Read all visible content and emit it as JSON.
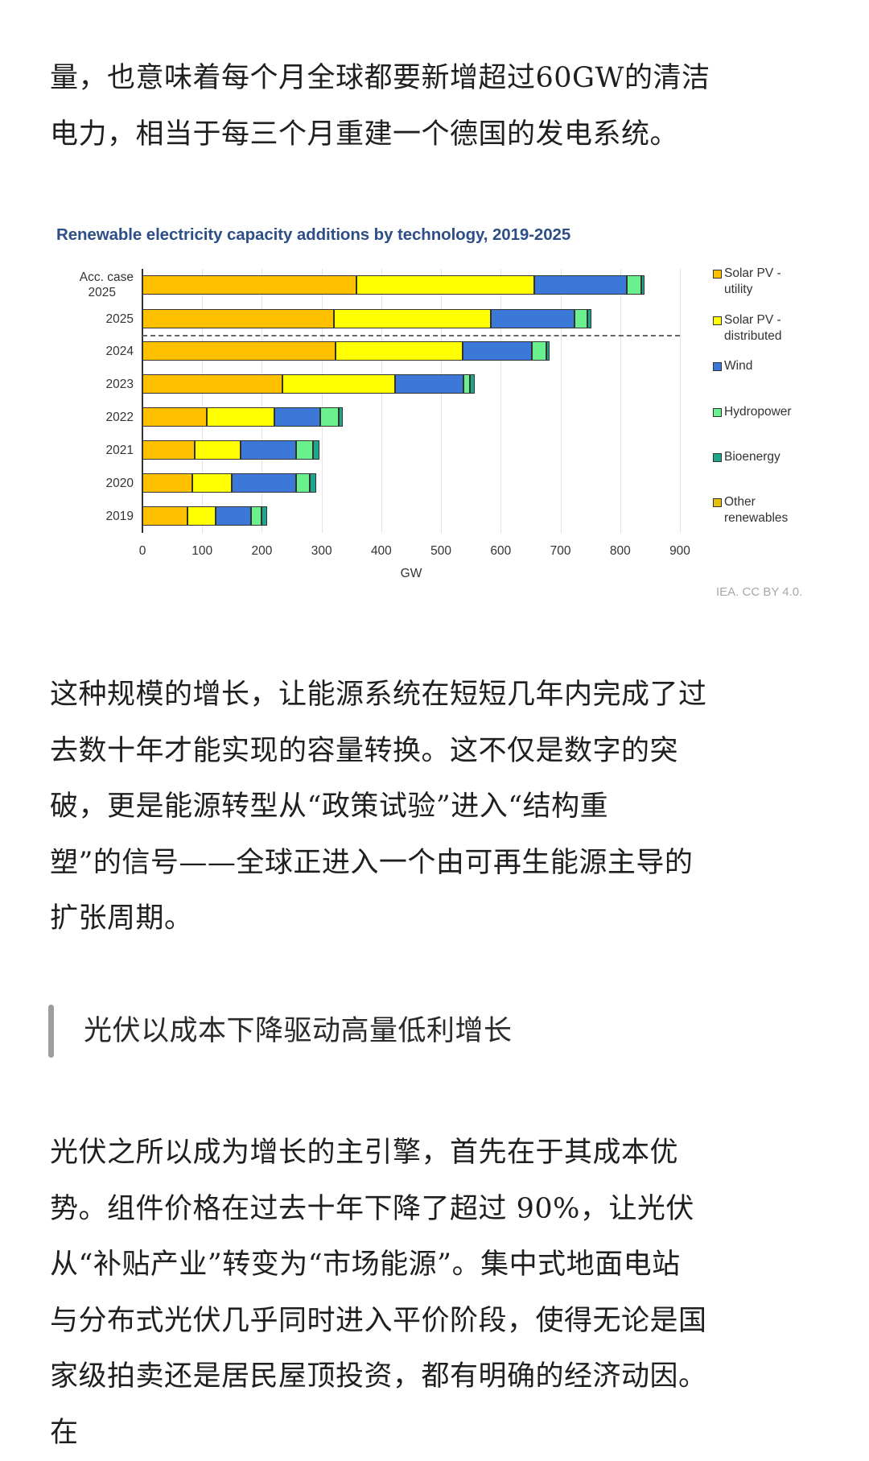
{
  "article": {
    "paragraph1": {
      "lines": [
        "量，也意味着每个月全球都要新增超过60GW的清洁",
        "电力，相当于每三个月重建一个德国的发电系统。"
      ]
    },
    "paragraph2": {
      "lines": [
        "这种规模的增长，让能源系统在短短几年内完成了过",
        "去数十年才能实现的容量转换。这不仅是数字的突",
        "破，更是能源转型从“政策试验”进入“结构重",
        "塑”的信号——全球正进入一个由可再生能源主导的",
        "扩张周期。"
      ]
    },
    "section_heading": "光伏以成本下降驱动高量低利增长",
    "paragraph3": {
      "lines": [
        "光伏之所以成为增长的主引擎，首先在于其成本优",
        "势。组件价格在过去十年下降了超过 90%，让光伏",
        "从“补贴产业”转变为“市场能源”。集中式地面电站",
        "与分布式光伏几乎同时进入平价阶段，使得无论是国",
        "家级拍卖还是居民屋顶投资，都有明确的经济动因。",
        "在"
      ]
    }
  },
  "chart_data": {
    "type": "bar",
    "orientation": "horizontal",
    "stacked": true,
    "title": "Renewable electricity capacity additions by technology, 2019-2025",
    "xlabel": "GW",
    "ylabel": "",
    "xlim": [
      0,
      900
    ],
    "xticks": [
      "0",
      "100",
      "200",
      "300",
      "400",
      "500",
      "600",
      "700",
      "800",
      "900"
    ],
    "grid": true,
    "legend_position": "right",
    "source": "IEA. CC BY 4.0.",
    "annotations": [
      "Dashed separator line between 2025 forecast rows and historical 2024"
    ],
    "categories": [
      "Acc. case 2025",
      "2025",
      "2024",
      "2023",
      "2022",
      "2021",
      "2020",
      "2019"
    ],
    "category_label_lines": [
      [
        "Acc. case",
        "2025"
      ],
      [
        "2025"
      ],
      [
        "2024"
      ],
      [
        "2023"
      ],
      [
        "2022"
      ],
      [
        "2021"
      ],
      [
        "2020"
      ],
      [
        "2019"
      ]
    ],
    "series": [
      {
        "name": "Solar PV - utility",
        "color": "#FFC000",
        "values": [
          359,
          321,
          324,
          235,
          108,
          88,
          84,
          75
        ]
      },
      {
        "name": "Solar PV - distributed",
        "color": "#FFFF00",
        "values": [
          297,
          262,
          212,
          188,
          113,
          77,
          66,
          47
        ]
      },
      {
        "name": "Wind",
        "color": "#3C78D8",
        "values": [
          155,
          140,
          116,
          115,
          77,
          93,
          108,
          60
        ]
      },
      {
        "name": "Hydropower",
        "color": "#6AF08C",
        "values": [
          24,
          22,
          25,
          11,
          31,
          28,
          22,
          18
        ]
      },
      {
        "name": "Bioenergy",
        "color": "#1FA58A",
        "values": [
          6,
          7,
          5,
          8,
          7,
          11,
          11,
          9
        ]
      },
      {
        "name": "Other renewables",
        "color": "#E5BE0A",
        "values": [
          0,
          0,
          0,
          0,
          0,
          0,
          0,
          0
        ]
      }
    ],
    "totals": [
      841,
      752,
      682,
      557,
      336,
      297,
      291,
      209
    ],
    "legend": [
      {
        "label": "Solar PV - utility",
        "color": "#FFC000"
      },
      {
        "label": "Solar PV - distributed",
        "color": "#FFFF00"
      },
      {
        "label": "Wind",
        "color": "#3C78D8"
      },
      {
        "label": "Hydropower",
        "color": "#6AF08C"
      },
      {
        "label": "Bioenergy",
        "color": "#1FA58A"
      },
      {
        "label": "Other renewables",
        "color": "#E5BE0A"
      }
    ]
  }
}
